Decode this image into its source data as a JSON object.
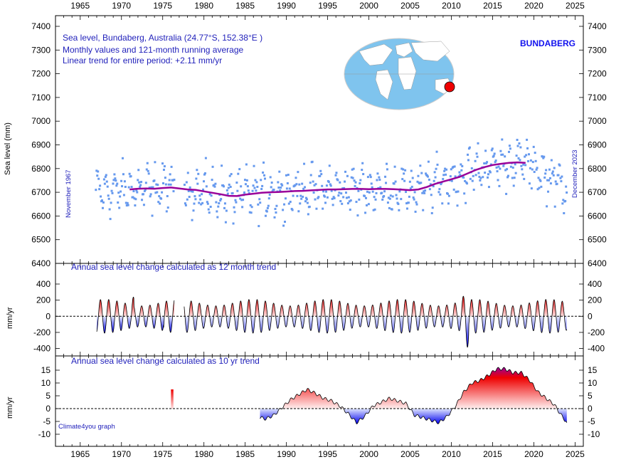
{
  "years": [
    "1965",
    "1970",
    "1975",
    "1980",
    "1985",
    "1990",
    "1995",
    "2000",
    "2005",
    "2010",
    "2015",
    "2020",
    "2025"
  ],
  "colors": {
    "dots": "#6699ee",
    "trend": "#990099",
    "red": "#ee0000",
    "pink": "#ffcccc",
    "blue": "#0000ee",
    "lightblue": "#ccd6ff",
    "text_blue": "#2222bb",
    "globe_ocean": "#7fc4ee",
    "globe_land": "#ffffff",
    "marker": "#ee0000"
  },
  "top": {
    "info": [
      "Sea level, Bundaberg, Australia (24.77°S, 152.38°E )",
      "Monthly values and 121-month running average",
      "Linear trend for entire period: +2.11 mm/yr"
    ],
    "station": "BUNDABERG",
    "ylabel": "Sea level (mm)",
    "start_label": "November 1967",
    "end_label": "December 2023",
    "yticks": [
      "6400",
      "6500",
      "6600",
      "6700",
      "6800",
      "6900",
      "7000",
      "7100",
      "7200",
      "7300",
      "7400"
    ]
  },
  "mid": {
    "title": "Annual sea level change calculated as 12 month trend",
    "ylabel": "mm/yr",
    "yticks": [
      "-400",
      "-200",
      "0",
      "200",
      "400"
    ]
  },
  "bot": {
    "title": "Annual sea level change calculated as 10 yr trend",
    "ylabel": "mm/yr",
    "yticks": [
      "-10",
      "-5",
      "0",
      "5",
      "10",
      "15"
    ],
    "credit": "Climate4you graph"
  },
  "chart_data": [
    {
      "type": "scatter",
      "title": "Sea level, Bundaberg, Australia (24.77°S, 152.38°E )",
      "ylabel": "Sea level (mm)",
      "xlim": [
        1962,
        2026
      ],
      "ylim": [
        6400,
        7400
      ],
      "series": [
        {
          "name": "Monthly values",
          "note_range": [
            6550,
            7050
          ]
        },
        {
          "name": "121-month running average",
          "x": [
            1971,
            1972,
            1973,
            1974,
            1975,
            1976,
            1977,
            1978,
            1979,
            1980,
            1981,
            1982,
            1983,
            1984,
            1985,
            1986,
            1987,
            1988,
            1989,
            1990,
            1991,
            1992,
            1993,
            1994,
            1995,
            1996,
            1997,
            1998,
            1999,
            2000,
            2001,
            2002,
            2003,
            2004,
            2005,
            2006,
            2007,
            2008,
            2009,
            2010,
            2011,
            2012,
            2013,
            2014,
            2015,
            2016,
            2017,
            2018,
            2019
          ],
          "values": [
            6712,
            6715,
            6716,
            6715,
            6718,
            6720,
            6716,
            6712,
            6710,
            6704,
            6698,
            6692,
            6685,
            6684,
            6690,
            6694,
            6698,
            6700,
            6701,
            6703,
            6705,
            6706,
            6708,
            6710,
            6712,
            6712,
            6713,
            6714,
            6714,
            6713,
            6714,
            6714,
            6713,
            6711,
            6709,
            6712,
            6722,
            6735,
            6745,
            6755,
            6765,
            6780,
            6795,
            6806,
            6815,
            6820,
            6824,
            6826,
            6824
          ]
        }
      ]
    },
    {
      "type": "area",
      "title": "Annual sea level change calculated as 12 month trend",
      "ylabel": "mm/yr",
      "xlim": [
        1962,
        2026
      ],
      "ylim": [
        -400,
        400
      ],
      "x_start": 1967.0,
      "x_end": 2024.0,
      "period_years": 1.0,
      "amplitude_note": "oscillates roughly between -250 and +200, extremes about +330 (1971.2), -340 (1975.4), -410 (2011.8)",
      "gaps": [
        [
          1976.4,
          1977.6
        ]
      ]
    },
    {
      "type": "area",
      "title": "Annual sea level change calculated as 10 yr trend",
      "ylabel": "mm/yr",
      "xlim": [
        1962,
        2026
      ],
      "ylim": [
        -10,
        15
      ],
      "x": [
        1976.0,
        1976.3,
        1986.8,
        1987.5,
        1988.5,
        1989.5,
        1990.5,
        1991.5,
        1992.5,
        1993.5,
        1994.5,
        1995.5,
        1996.5,
        1997.5,
        1998.5,
        1999.5,
        2000.5,
        2001.5,
        2002.5,
        2003.5,
        2004.5,
        2005.5,
        2006.5,
        2007.5,
        2008.5,
        2009.5,
        2010.5,
        2011.5,
        2012.5,
        2013.5,
        2014.5,
        2015.5,
        2016.5,
        2017.5,
        2018.5,
        2019.5,
        2020.5,
        2021.5,
        2022.5,
        2023.2,
        2024.0
      ],
      "values": [
        6.5,
        7.5,
        -3.5,
        -4.0,
        -2.5,
        0.5,
        3.5,
        5.5,
        7.5,
        6.0,
        4.0,
        3.0,
        1.0,
        -2.0,
        -5.5,
        -3.0,
        1.0,
        2.5,
        4.0,
        3.0,
        2.0,
        -2.5,
        -3.5,
        -4.5,
        -5.5,
        -3.0,
        1.0,
        6.5,
        10.0,
        11.0,
        13.0,
        15.5,
        15.5,
        14.0,
        14.0,
        11.0,
        6.5,
        4.0,
        1.5,
        -2.0,
        -5.5
      ]
    }
  ]
}
